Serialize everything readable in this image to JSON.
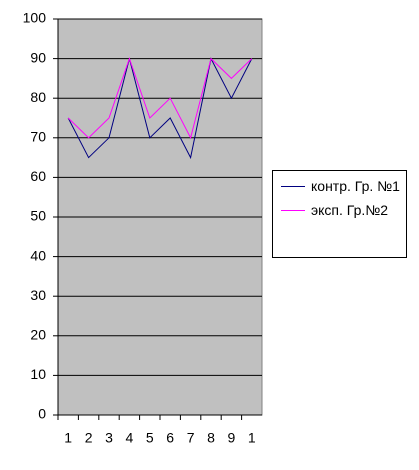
{
  "chart_data": {
    "type": "line",
    "categories": [
      "1",
      "2",
      "3",
      "4",
      "5",
      "6",
      "7",
      "8",
      "9",
      "1"
    ],
    "series": [
      {
        "name": "контр. Гр. №1",
        "color": "#000080",
        "values": [
          75,
          65,
          70,
          90,
          70,
          75,
          65,
          90,
          80,
          90
        ]
      },
      {
        "name": "эксп. Гр.№2",
        "color": "#ff00ff",
        "values": [
          75,
          70,
          75,
          90,
          75,
          80,
          70,
          90,
          85,
          90
        ]
      }
    ],
    "ylim": [
      0,
      100
    ],
    "yticks": [
      0,
      10,
      20,
      30,
      40,
      50,
      60,
      70,
      80,
      90,
      100
    ],
    "grid": true,
    "legend": "right"
  }
}
